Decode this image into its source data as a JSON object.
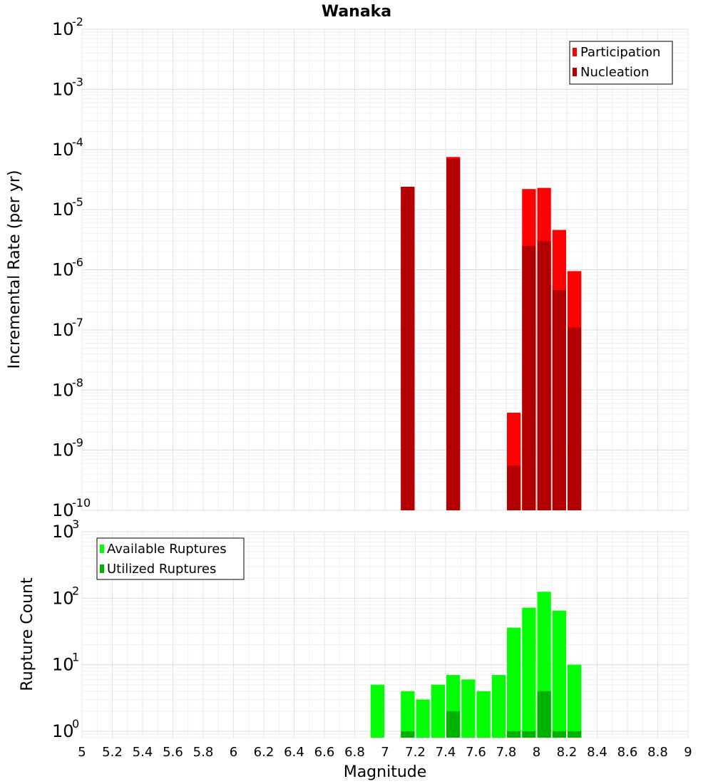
{
  "chart_data": [
    {
      "type": "bar",
      "title": "Wanaka",
      "xlabel": "",
      "ylabel": "Incremental Rate (per yr)",
      "yscale": "log",
      "xlim": [
        5,
        9
      ],
      "ylim": [
        1e-10,
        0.01
      ],
      "ytick_exponents": [
        "-10",
        "-9",
        "-8",
        "-7",
        "-6",
        "-5",
        "-4",
        "-3",
        "-2"
      ],
      "bar_width": 0.1,
      "legend_position": "top-right",
      "grid": true,
      "series": [
        {
          "name": "Participation",
          "color": "#ff0000",
          "x": [
            7.15,
            7.45,
            7.85,
            7.95,
            8.05,
            8.15,
            8.25
          ],
          "values": [
            2.4e-05,
            7.5e-05,
            4.2e-09,
            2.2e-05,
            2.3e-05,
            4.6e-06,
            9.5e-07
          ]
        },
        {
          "name": "Nucleation",
          "color": "#b20000",
          "x": [
            7.15,
            7.45,
            7.85,
            7.95,
            8.05,
            8.15,
            8.25
          ],
          "values": [
            2.4e-05,
            7e-05,
            5.5e-10,
            2.5e-06,
            3e-06,
            4.6e-07,
            1.1e-07
          ]
        }
      ]
    },
    {
      "type": "bar",
      "title": "",
      "xlabel": "Magnitude",
      "ylabel": "Rupture Count",
      "yscale": "log",
      "xlim": [
        5,
        9
      ],
      "ylim": [
        0.8,
        1000
      ],
      "ytick_exponents": [
        "0",
        "1",
        "2",
        "3"
      ],
      "xticks": [
        "5",
        "5.2",
        "5.4",
        "5.6",
        "5.8",
        "6",
        "6.2",
        "6.4",
        "6.6",
        "6.8",
        "7",
        "7.2",
        "7.4",
        "7.6",
        "7.8",
        "8",
        "8.2",
        "8.4",
        "8.6",
        "8.8",
        "9"
      ],
      "bar_width": 0.1,
      "legend_position": "top-left",
      "grid": true,
      "series": [
        {
          "name": "Available Ruptures",
          "color": "#00ff00",
          "x": [
            6.95,
            7.15,
            7.25,
            7.35,
            7.45,
            7.55,
            7.65,
            7.75,
            7.85,
            7.95,
            8.05,
            8.15,
            8.25
          ],
          "values": [
            5,
            4,
            3,
            5,
            7,
            6,
            4,
            7,
            36,
            72,
            125,
            65,
            10
          ]
        },
        {
          "name": "Utilized Ruptures",
          "color": "#00b200",
          "x": [
            7.15,
            7.45,
            7.85,
            7.95,
            8.05,
            8.15,
            8.25
          ],
          "values": [
            1,
            2,
            1,
            1,
            4,
            1,
            1
          ]
        }
      ]
    }
  ]
}
